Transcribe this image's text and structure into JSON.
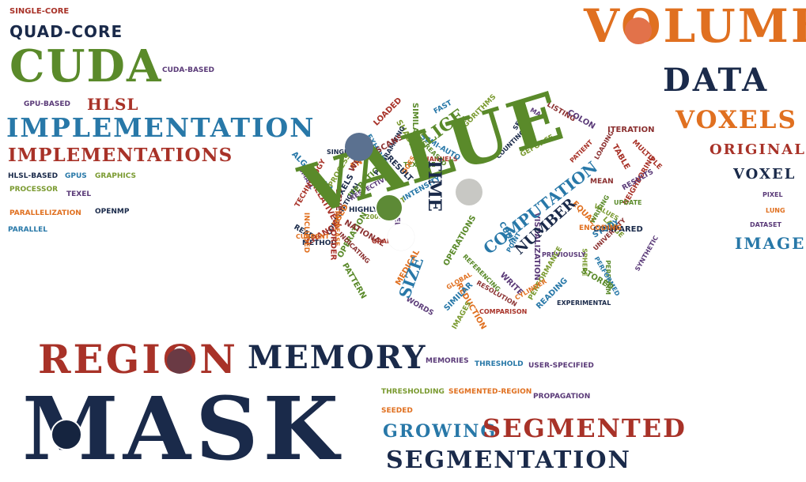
{
  "colors": {
    "navy": "#1a2a4a",
    "green": "#5a8a2a",
    "orange": "#e07020",
    "red": "#a83228",
    "blue": "#2878a8",
    "purple": "#5a3a78",
    "olive": "#7a9a30",
    "maroon": "#8b3030"
  },
  "words": {
    "single_core": "SINGLE-CORE",
    "quad_core": "QUAD-CORE",
    "cuda": "CUDA",
    "cuda_based": "CUDA-BASED",
    "gpu_based": "GPU-BASED",
    "hlsl": "HLSL",
    "implementation": "IMPLEMENTATION",
    "implementations": "IMPLEMENTATIONS",
    "hlsl_based": "HLSL-BASED",
    "gpus": "GPUS",
    "graphics": "GRAPHICS",
    "processor": "PROCESSOR",
    "texel": "TEXEL",
    "parallelization": "PARALLELIZATION",
    "openmp": "OPENMP",
    "parallel": "PARALLEL",
    "volume": "VOLUME",
    "data": "DATA",
    "voxels": "VOXELS",
    "original": "ORIGINAL",
    "voxel": "VOXEL",
    "pixel": "PIXEL",
    "lung": "LUNG",
    "dataset": "DATASET",
    "image": "IMAGE",
    "value": "VALUE",
    "time": "TIME",
    "slice": "SLICE",
    "computation": "COMPUTATION",
    "number": "NUMBER",
    "size": "SIZE",
    "region": "REGION",
    "memory": "MEMORY",
    "memories": "MEMORIES",
    "threshold": "THRESHOLD",
    "user_specified": "USER-SPECIFIED",
    "thresholding": "THRESHOLDING",
    "segmented_region": "SEGMENTED-REGION",
    "propagation": "PROPAGATION",
    "seeded": "SEEDED",
    "mask": "MASK",
    "growing": "GROWING",
    "segmented": "SEGMENTED",
    "segmentation": "SEGMENTATION"
  },
  "cluster_words": [
    "COMPUTATIONAL",
    "OPERATION",
    "ENTIRE",
    "CHANNELS",
    "SEMI-AUTO",
    "VISUALIZATION",
    "SPHERE",
    "INDICATING",
    "EXPERIMENTAL",
    "ITERATION",
    "MEDICAL",
    "COMPARISON",
    "EXHIBITED",
    "PREVIOUSLY",
    "LARGE",
    "MEAN",
    "METHOD",
    "REFERENCING",
    "REDUCTION",
    "MULTIPLE",
    "INTENSITY",
    "WRITE",
    "IMAGES",
    "WORK",
    "READ",
    "PERFORM",
    "EQUAL",
    "LOADED",
    "POINT",
    "SMALL",
    "BEST",
    "UNIVERSITY",
    "COUNTING",
    "TEXTURE",
    "USED",
    "CHANGE",
    "FAST",
    "SYNTHETIC",
    "PERFORMANCE",
    "NATIONAL",
    "PIXELS",
    "SIMILARITY",
    "INCLUDED",
    "RELATIVELY",
    "ALGORITHM",
    "SEED",
    "SHADER",
    "LEVEL",
    "COMPARED",
    "INCREASED",
    "CYLINDER",
    "NEIGHBORING",
    "READING",
    "WORDS",
    "GEFORCE",
    "LOADING",
    "HIGHLY",
    "OPERATIONS",
    "INCREASE",
    "GRAPH",
    "PERFORMED",
    "RESPECTIVELY",
    "ALGORITHMS",
    "ITERATION",
    "SET",
    "STORED",
    "GLOBAL",
    "TABLE",
    "SIMILAR",
    "RESULTS",
    "PROCESS",
    "LISTING",
    "PROGRAMMING",
    "PATTERN",
    "CURRENT",
    "PATIENT",
    "STUDY",
    "MAIN",
    "2003",
    "RESOLUTION",
    "SINGLE",
    "UPDATE",
    "DOES",
    "ORDER",
    "CUBE",
    "COLON",
    "VALUES",
    "SCANS",
    "RESULT",
    "WRITING",
    "ENCODING",
    "TECHNOLOGY"
  ]
}
